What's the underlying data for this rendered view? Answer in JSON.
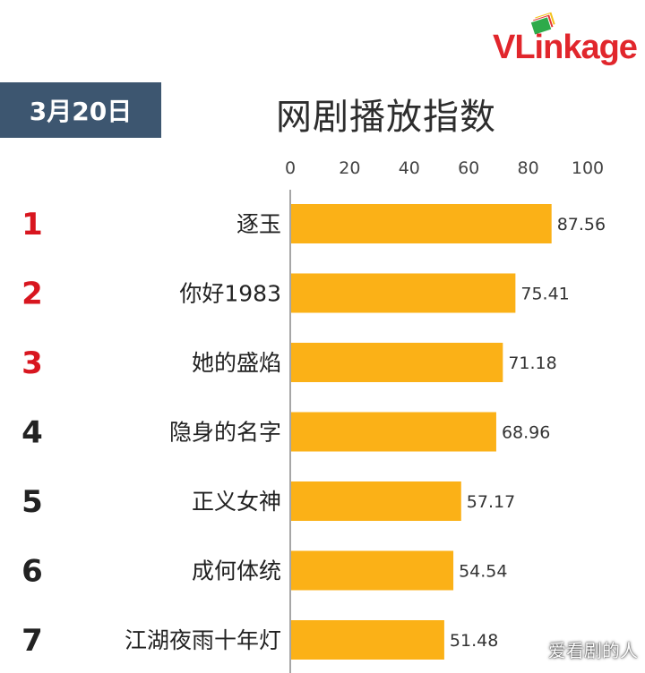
{
  "header": {
    "date": "3月20日",
    "title": "网剧播放指数",
    "brand": "VLinkage",
    "watermark": "爱看剧的人"
  },
  "colors": {
    "bar": "#fbb117",
    "rank_top3": "#d8161f",
    "rank_other": "#222222",
    "banner": "#3d5670",
    "brand": "#e1262c"
  },
  "chart_data": {
    "type": "bar",
    "orientation": "horizontal",
    "title": "网剧播放指数",
    "xlim": [
      0,
      100
    ],
    "ticks": [
      0,
      20,
      40,
      60,
      80,
      100
    ],
    "categories": [
      "逐玉",
      "你好1983",
      "她的盛焰",
      "隐身的名字",
      "正义女神",
      "成何体统",
      "江湖夜雨十年灯"
    ],
    "ranks": [
      1,
      2,
      3,
      4,
      5,
      6,
      7
    ],
    "values": [
      87.56,
      75.41,
      71.18,
      68.96,
      57.17,
      54.54,
      51.48
    ],
    "value_labels": [
      "87.56",
      "75.41",
      "71.18",
      "68.96",
      "57.17",
      "54.54",
      "51.48"
    ],
    "grid": false,
    "legend": "none"
  }
}
